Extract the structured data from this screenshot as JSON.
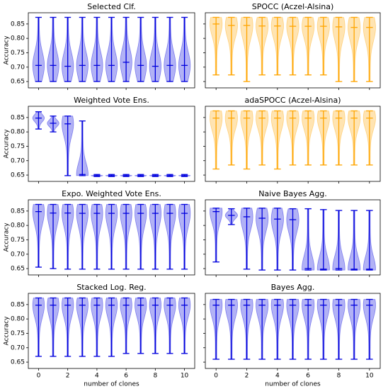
{
  "chart_data": [
    {
      "type": "violin",
      "title": "Selected Clf.",
      "ylabel": "Accuracy",
      "x": [
        0,
        1,
        2,
        3,
        4,
        5,
        6,
        7,
        8,
        9,
        10
      ],
      "xlim": [
        -0.7,
        10.7
      ],
      "xticks": [
        0,
        2,
        4,
        6,
        8,
        10
      ],
      "ylim": [
        0.628,
        0.889
      ],
      "yticks": [
        0.65,
        {
          "value": 0.7,
          "label": "0.70"
        },
        0.75,
        {
          "value": 0.8,
          "label": "0.80"
        },
        0.85
      ],
      "series": [
        {
          "color": "#0000dd",
          "min": [
            0.65,
            0.65,
            0.65,
            0.65,
            0.65,
            0.65,
            0.65,
            0.65,
            0.65,
            0.65,
            0.65
          ],
          "median": [
            0.706,
            0.706,
            0.703,
            0.706,
            0.706,
            0.706,
            0.717,
            0.706,
            0.703,
            0.706,
            0.706
          ],
          "max": [
            0.873,
            0.873,
            0.873,
            0.873,
            0.873,
            0.873,
            0.873,
            0.873,
            0.873,
            0.873,
            0.873
          ]
        }
      ]
    },
    {
      "type": "violin",
      "title": "SPOCC (Aczel-Alsina)",
      "x": [
        0,
        1,
        2,
        3,
        4,
        5,
        6,
        7,
        8,
        9,
        10
      ],
      "xlim": [
        -0.7,
        10.7
      ],
      "xticks": [
        0,
        2,
        4,
        6,
        8,
        10
      ],
      "ylim": [
        0.628,
        0.889
      ],
      "yticks": [
        0.65,
        0.7,
        0.75,
        0.8,
        0.85
      ],
      "series": [
        {
          "color": "#ffa500",
          "min": [
            0.673,
            0.673,
            0.65,
            0.673,
            0.673,
            0.673,
            0.673,
            0.673,
            0.65,
            0.65,
            0.65
          ],
          "median": [
            0.85,
            0.845,
            0.845,
            0.843,
            0.843,
            0.842,
            0.842,
            0.842,
            0.84,
            0.838,
            0.838
          ],
          "max": [
            0.873,
            0.873,
            0.873,
            0.873,
            0.873,
            0.873,
            0.873,
            0.873,
            0.873,
            0.873,
            0.873
          ]
        }
      ]
    },
    {
      "type": "violin",
      "title": "Weighted Vote Ens.",
      "ylabel": "Accuracy",
      "x": [
        0,
        1,
        2,
        3,
        4,
        5,
        6,
        7,
        8,
        9,
        10
      ],
      "xlim": [
        -0.7,
        10.7
      ],
      "xticks": [
        0,
        2,
        4,
        6,
        8,
        10
      ],
      "ylim": [
        0.628,
        0.889
      ],
      "yticks": [
        0.65,
        {
          "value": 0.7,
          "label": "0.70"
        },
        0.75,
        {
          "value": 0.8,
          "label": "0.80"
        },
        0.85
      ],
      "series": [
        {
          "color": "#0000dd",
          "min": [
            0.81,
            0.8,
            0.648,
            0.648,
            0.645,
            0.645,
            0.645,
            0.645,
            0.645,
            0.645,
            0.645
          ],
          "median": [
            0.848,
            0.83,
            0.828,
            0.652,
            0.648,
            0.648,
            0.648,
            0.648,
            0.648,
            0.648,
            0.648
          ],
          "max": [
            0.87,
            0.855,
            0.855,
            0.838,
            0.652,
            0.652,
            0.652,
            0.652,
            0.652,
            0.652,
            0.652
          ]
        }
      ]
    },
    {
      "type": "violin",
      "title": "adaSPOCC (Aczel-Alsina)",
      "x": [
        0,
        1,
        2,
        3,
        4,
        5,
        6,
        7,
        8,
        9,
        10
      ],
      "xlim": [
        -0.7,
        10.7
      ],
      "xticks": [
        0,
        2,
        4,
        6,
        8,
        10
      ],
      "ylim": [
        0.628,
        0.889
      ],
      "yticks": [
        0.65,
        0.7,
        0.75,
        0.8,
        0.85
      ],
      "series": [
        {
          "color": "#ffa500",
          "min": [
            0.671,
            0.685,
            0.671,
            0.685,
            0.671,
            0.685,
            0.685,
            0.685,
            0.685,
            0.685,
            0.685
          ],
          "median": [
            0.848,
            0.848,
            0.848,
            0.848,
            0.848,
            0.848,
            0.848,
            0.848,
            0.848,
            0.848,
            0.848
          ],
          "max": [
            0.873,
            0.873,
            0.873,
            0.873,
            0.873,
            0.873,
            0.873,
            0.873,
            0.873,
            0.873,
            0.873
          ]
        }
      ]
    },
    {
      "type": "violin",
      "title": "Expo. Weighted Vote Ens.",
      "ylabel": "Accuracy",
      "x": [
        0,
        1,
        2,
        3,
        4,
        5,
        6,
        7,
        8,
        9,
        10
      ],
      "xlim": [
        -0.7,
        10.7
      ],
      "xticks": [
        0,
        2,
        4,
        6,
        8,
        10
      ],
      "ylim": [
        0.628,
        0.889
      ],
      "yticks": [
        0.65,
        {
          "value": 0.7,
          "label": "0.70"
        },
        0.75,
        {
          "value": 0.8,
          "label": "0.80"
        },
        0.85
      ],
      "series": [
        {
          "color": "#0000dd",
          "min": [
            0.655,
            0.65,
            0.648,
            0.648,
            0.648,
            0.648,
            0.648,
            0.648,
            0.648,
            0.648,
            0.648
          ],
          "median": [
            0.848,
            0.843,
            0.843,
            0.842,
            0.842,
            0.842,
            0.842,
            0.842,
            0.842,
            0.842,
            0.842
          ],
          "max": [
            0.873,
            0.873,
            0.873,
            0.873,
            0.873,
            0.873,
            0.873,
            0.873,
            0.873,
            0.873,
            0.873
          ]
        }
      ]
    },
    {
      "type": "violin",
      "title": "Naive Bayes Agg.",
      "x": [
        0,
        1,
        2,
        3,
        4,
        5,
        6,
        7,
        8,
        9,
        10
      ],
      "xlim": [
        -0.7,
        10.7
      ],
      "xticks": [
        0,
        2,
        4,
        6,
        8,
        10
      ],
      "ylim": [
        0.628,
        0.889
      ],
      "yticks": [
        0.65,
        0.7,
        0.75,
        0.8,
        0.85
      ],
      "series": [
        {
          "color": "#0000dd",
          "min": [
            0.673,
            0.803,
            0.648,
            0.645,
            0.645,
            0.645,
            0.645,
            0.645,
            0.645,
            0.645,
            0.645
          ],
          "median": [
            0.848,
            0.835,
            0.83,
            0.825,
            0.822,
            0.82,
            0.65,
            0.648,
            0.65,
            0.648,
            0.648
          ],
          "max": [
            0.86,
            0.858,
            0.86,
            0.86,
            0.86,
            0.858,
            0.858,
            0.855,
            0.852,
            0.852,
            0.852
          ]
        }
      ]
    },
    {
      "type": "violin",
      "title": "Stacked Log. Reg.",
      "ylabel": "Accuracy",
      "xlabel": "number of clones",
      "x": [
        0,
        1,
        2,
        3,
        4,
        5,
        6,
        7,
        8,
        9,
        10
      ],
      "xlim": [
        -0.7,
        10.7
      ],
      "xticks": [
        0,
        2,
        4,
        6,
        8,
        10
      ],
      "ylim": [
        0.628,
        0.889
      ],
      "yticks": [
        0.65,
        {
          "value": 0.7,
          "label": "0.70"
        },
        0.75,
        {
          "value": 0.8,
          "label": "0.80"
        },
        0.85
      ],
      "series": [
        {
          "color": "#0000dd",
          "min": [
            0.67,
            0.67,
            0.67,
            0.67,
            0.67,
            0.67,
            0.68,
            0.68,
            0.68,
            0.68,
            0.68
          ],
          "median": [
            0.848,
            0.848,
            0.848,
            0.848,
            0.848,
            0.848,
            0.848,
            0.848,
            0.848,
            0.848,
            0.848
          ],
          "max": [
            0.873,
            0.873,
            0.873,
            0.873,
            0.873,
            0.873,
            0.873,
            0.873,
            0.873,
            0.873,
            0.873
          ]
        }
      ]
    },
    {
      "type": "violin",
      "title": "Bayes Agg.",
      "xlabel": "number of clones",
      "x": [
        0,
        1,
        2,
        3,
        4,
        5,
        6,
        7,
        8,
        9,
        10
      ],
      "xlim": [
        -0.7,
        10.7
      ],
      "xticks": [
        0,
        2,
        4,
        6,
        8,
        10
      ],
      "ylim": [
        0.628,
        0.889
      ],
      "yticks": [
        0.65,
        0.7,
        0.75,
        0.8,
        0.85
      ],
      "series": [
        {
          "color": "#0000dd",
          "min": [
            0.66,
            0.66,
            0.66,
            0.66,
            0.66,
            0.66,
            0.66,
            0.66,
            0.66,
            0.66,
            0.66
          ],
          "median": [
            0.848,
            0.848,
            0.848,
            0.848,
            0.848,
            0.848,
            0.848,
            0.848,
            0.848,
            0.848,
            0.848
          ],
          "max": [
            0.868,
            0.868,
            0.868,
            0.868,
            0.868,
            0.868,
            0.868,
            0.868,
            0.868,
            0.868,
            0.868
          ]
        }
      ]
    }
  ]
}
